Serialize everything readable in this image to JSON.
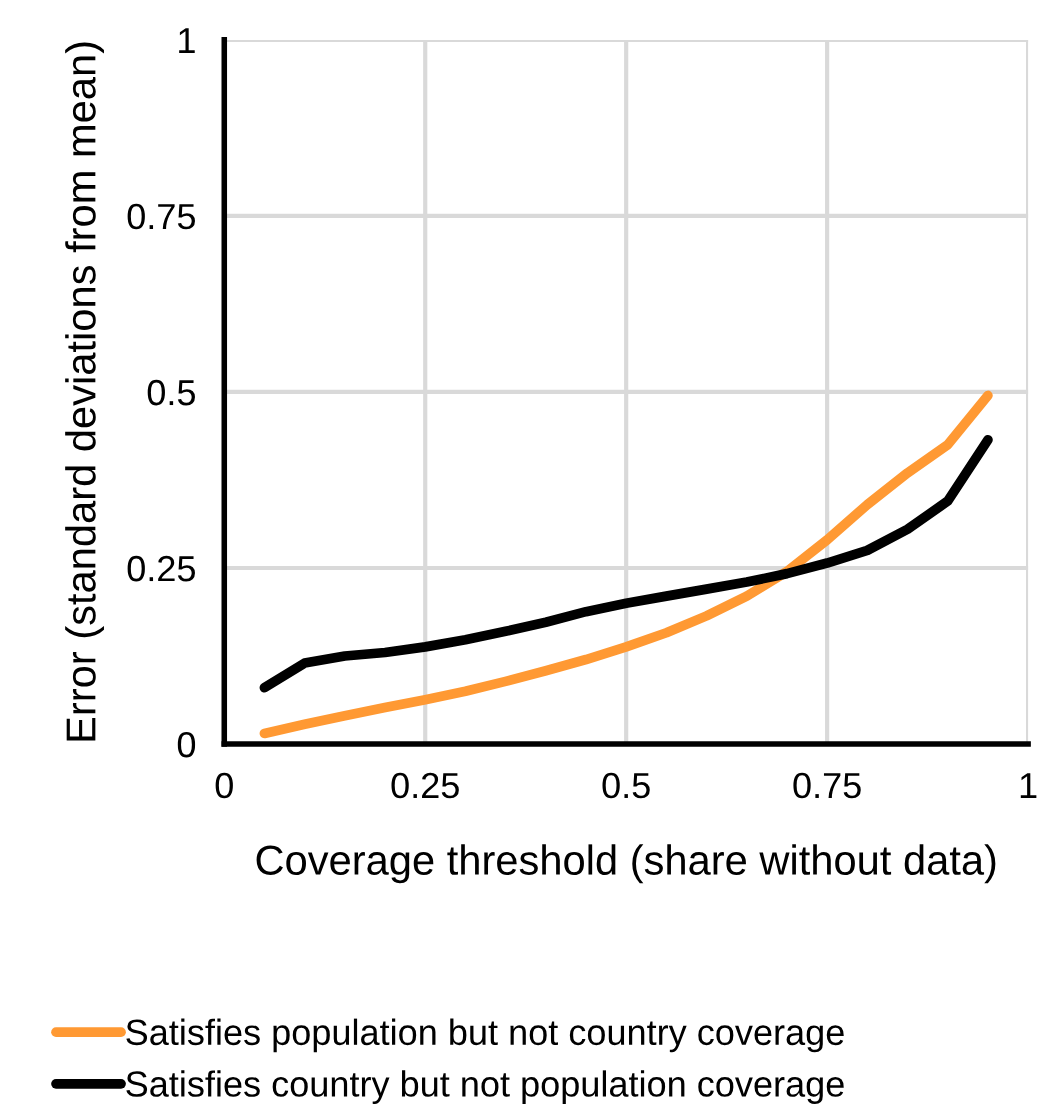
{
  "chart_data": {
    "type": "line",
    "xlabel": "Coverage threshold (share without data)",
    "ylabel": "Error (standard deviations from mean)",
    "x": [
      0.05,
      0.1,
      0.15,
      0.2,
      0.25,
      0.3,
      0.35,
      0.4,
      0.45,
      0.5,
      0.55,
      0.6,
      0.65,
      0.7,
      0.75,
      0.8,
      0.85,
      0.9,
      0.95
    ],
    "series": [
      {
        "name": "Satisfies population but not country coverage",
        "color": "#ff9933",
        "values": [
          0.015,
          0.028,
          0.04,
          0.052,
          0.063,
          0.075,
          0.089,
          0.104,
          0.12,
          0.138,
          0.158,
          0.182,
          0.21,
          0.245,
          0.29,
          0.34,
          0.385,
          0.425,
          0.495
        ]
      },
      {
        "name": "Satisfies country but not population coverage",
        "color": "#000000",
        "values": [
          0.08,
          0.115,
          0.125,
          0.13,
          0.138,
          0.148,
          0.16,
          0.173,
          0.188,
          0.2,
          0.21,
          0.22,
          0.23,
          0.242,
          0.257,
          0.275,
          0.305,
          0.345,
          0.432
        ]
      }
    ],
    "xlim": [
      0,
      1
    ],
    "ylim": [
      0,
      1
    ],
    "xticks": [
      0,
      0.25,
      0.5,
      0.75,
      1
    ],
    "yticks": [
      0,
      0.25,
      0.5,
      0.75,
      1
    ],
    "grid": true,
    "legend": "bottom",
    "marker": "none",
    "line_style": "solid"
  }
}
